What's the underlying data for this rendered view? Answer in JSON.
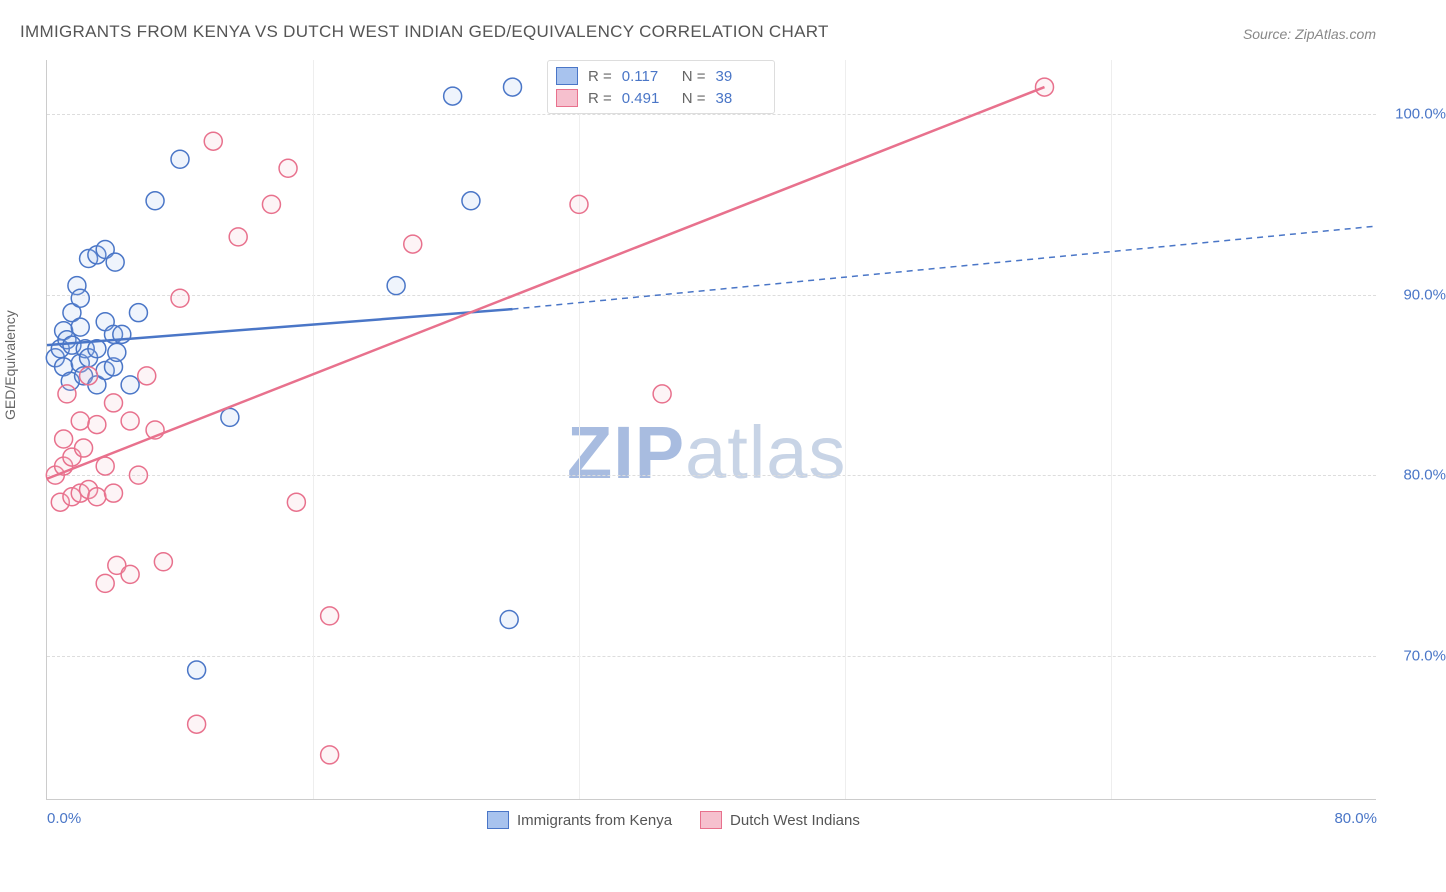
{
  "title": "IMMIGRANTS FROM KENYA VS DUTCH WEST INDIAN GED/EQUIVALENCY CORRELATION CHART",
  "source_label": "Source:",
  "source_value": "ZipAtlas.com",
  "ylabel": "GED/Equivalency",
  "watermark": {
    "bold": "ZIP",
    "light": "atlas"
  },
  "chart": {
    "type": "scatter",
    "xlim": [
      0,
      80
    ],
    "ylim": [
      62,
      103
    ],
    "xticks": [
      0,
      80
    ],
    "xtick_labels": [
      "0.0%",
      "80.0%"
    ],
    "yticks": [
      70,
      80,
      90,
      100
    ],
    "ytick_labels": [
      "70.0%",
      "80.0%",
      "90.0%",
      "100.0%"
    ],
    "xgrid": [
      16,
      32,
      48,
      64
    ],
    "grid_color": "#dddddd",
    "background_color": "#ffffff",
    "axis_color": "#cccccc",
    "tick_label_color": "#4a76c7",
    "tick_fontsize": 15,
    "marker_radius": 9,
    "marker_stroke_width": 1.5,
    "marker_fill_opacity": 0.18,
    "trend_line_stroke_width": 2.5,
    "trend_dash_pattern": "6,5"
  },
  "series": [
    {
      "name": "Immigrants from Kenya",
      "stroke": "#4a76c7",
      "fill": "#a8c3ee",
      "R_label": "R =",
      "R": "0.117",
      "N_label": "N =",
      "N": "39",
      "trend": {
        "x1": 0,
        "y1": 87.2,
        "x2": 28,
        "y2": 89.2,
        "solid": true
      },
      "trend_ext": {
        "x1": 28,
        "y1": 89.2,
        "x2": 80,
        "y2": 93.8
      },
      "points": [
        [
          0.5,
          86.5
        ],
        [
          0.8,
          87.0
        ],
        [
          1.0,
          86.0
        ],
        [
          1.0,
          88.0
        ],
        [
          1.2,
          87.5
        ],
        [
          1.4,
          85.2
        ],
        [
          1.5,
          87.2
        ],
        [
          1.5,
          89.0
        ],
        [
          1.8,
          90.5
        ],
        [
          2.0,
          86.2
        ],
        [
          2.0,
          88.2
        ],
        [
          2.0,
          89.8
        ],
        [
          2.2,
          85.5
        ],
        [
          2.3,
          87.0
        ],
        [
          2.5,
          86.5
        ],
        [
          2.5,
          92.0
        ],
        [
          3.0,
          85.0
        ],
        [
          3.0,
          87.0
        ],
        [
          3.0,
          92.2
        ],
        [
          3.5,
          88.5
        ],
        [
          3.5,
          85.8
        ],
        [
          3.5,
          92.5
        ],
        [
          4.0,
          86.0
        ],
        [
          4.0,
          87.8
        ],
        [
          4.1,
          91.8
        ],
        [
          4.2,
          86.8
        ],
        [
          4.5,
          87.8
        ],
        [
          5.0,
          85.0
        ],
        [
          5.5,
          89.0
        ],
        [
          6.5,
          95.2
        ],
        [
          8.0,
          97.5
        ],
        [
          9.0,
          69.2
        ],
        [
          11.0,
          83.2
        ],
        [
          21.0,
          90.5
        ],
        [
          24.4,
          101.0
        ],
        [
          25.5,
          95.2
        ],
        [
          27.8,
          72.0
        ],
        [
          28.0,
          101.5
        ]
      ]
    },
    {
      "name": "Dutch West Indians",
      "stroke": "#e8718d",
      "fill": "#f6c0ce",
      "R_label": "R =",
      "R": "0.491",
      "N_label": "N =",
      "N": "38",
      "trend": {
        "x1": 0,
        "y1": 79.8,
        "x2": 60,
        "y2": 101.5,
        "solid": true
      },
      "points": [
        [
          0.5,
          80.0
        ],
        [
          0.8,
          78.5
        ],
        [
          1.0,
          82.0
        ],
        [
          1.0,
          80.5
        ],
        [
          1.2,
          84.5
        ],
        [
          1.5,
          81.0
        ],
        [
          1.5,
          78.8
        ],
        [
          2.0,
          79.0
        ],
        [
          2.0,
          83.0
        ],
        [
          2.2,
          81.5
        ],
        [
          2.5,
          79.2
        ],
        [
          2.5,
          85.5
        ],
        [
          3.0,
          78.8
        ],
        [
          3.0,
          82.8
        ],
        [
          3.5,
          80.5
        ],
        [
          3.5,
          74.0
        ],
        [
          4.0,
          79.0
        ],
        [
          4.0,
          84.0
        ],
        [
          4.2,
          75.0
        ],
        [
          5.0,
          74.5
        ],
        [
          5.0,
          83.0
        ],
        [
          5.5,
          80.0
        ],
        [
          6.0,
          85.5
        ],
        [
          6.5,
          82.5
        ],
        [
          7.0,
          75.2
        ],
        [
          8.0,
          89.8
        ],
        [
          9.0,
          66.2
        ],
        [
          10.0,
          98.5
        ],
        [
          11.5,
          93.2
        ],
        [
          13.5,
          95.0
        ],
        [
          14.5,
          97.0
        ],
        [
          15.0,
          78.5
        ],
        [
          17.0,
          64.5
        ],
        [
          17.0,
          72.2
        ],
        [
          22.0,
          92.8
        ],
        [
          32.0,
          95.0
        ],
        [
          37.0,
          84.5
        ],
        [
          60.0,
          101.5
        ]
      ]
    }
  ],
  "legend_bottom": [
    {
      "label": "Immigrants from Kenya",
      "stroke": "#4a76c7",
      "fill": "#a8c3ee"
    },
    {
      "label": "Dutch West Indians",
      "stroke": "#e8718d",
      "fill": "#f6c0ce"
    }
  ]
}
